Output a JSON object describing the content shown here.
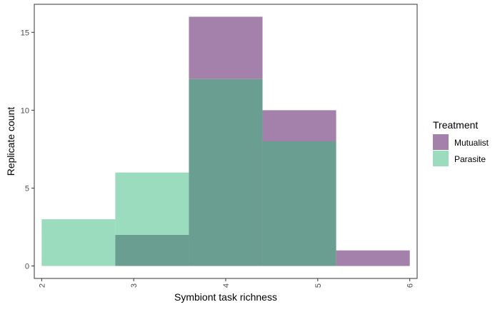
{
  "chart_data": {
    "type": "bar",
    "subtype": "overlapping-histogram",
    "title": "",
    "xlabel": "Symbiont task richness",
    "ylabel": "Replicate count",
    "xlim": [
      1.92,
      6.08
    ],
    "ylim": [
      -0.8,
      16.8
    ],
    "x_ticks": [
      2,
      3,
      4,
      5,
      6
    ],
    "x_tick_labels": [
      "2",
      "3",
      "4",
      "5",
      "6"
    ],
    "y_ticks": [
      0,
      5,
      10,
      15
    ],
    "y_tick_labels": [
      "0",
      "5",
      "10",
      "15"
    ],
    "bin_edges": [
      2.0,
      2.8,
      3.6,
      4.4,
      5.2,
      6.0
    ],
    "series": [
      {
        "name": "Parasite",
        "color": "#9adcbd",
        "values": [
          3,
          6,
          12,
          8,
          0
        ]
      },
      {
        "name": "Mutualist",
        "color": "#a381ab",
        "values": [
          0,
          2,
          16,
          10,
          1
        ]
      }
    ],
    "overlap_color": "#6a9e91",
    "grid": false,
    "legend": {
      "title": "Treatment",
      "position": "right",
      "entries": [
        "Mutualist",
        "Parasite"
      ]
    }
  }
}
